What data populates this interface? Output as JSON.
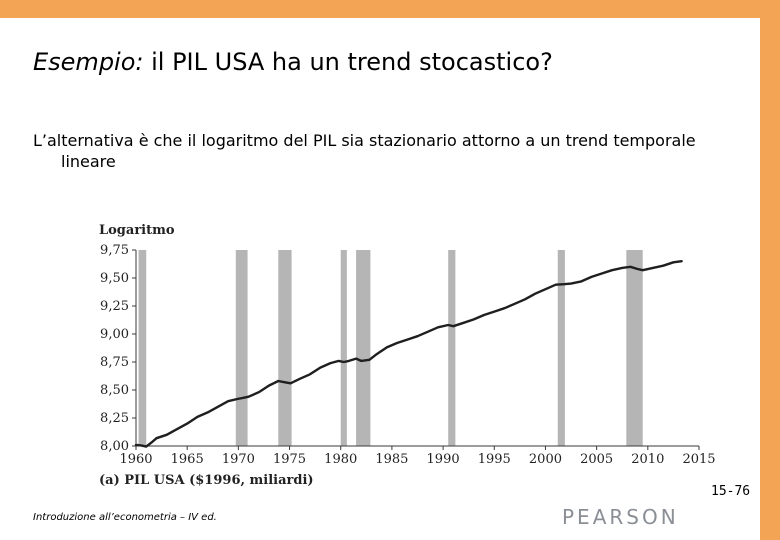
{
  "slide": {
    "title_em": "Esempio:",
    "title_rest": " il PIL USA ha un trend stocastico?",
    "subtitle": "L’alternativa è che il logaritmo del PIL sia stazionario attorno a un trend temporale lineare",
    "footer": "Introduzione all’econometria – IV ed.",
    "logo": "PEARSON",
    "page": "15-76"
  },
  "chart_data": {
    "type": "line",
    "title": "(a) PIL USA ($1996, miliardi)",
    "ylabel": "Logaritmo",
    "xlabel": "",
    "xlim": [
      1960,
      2015
    ],
    "ylim": [
      8.0,
      9.75
    ],
    "x_ticks": [
      1960,
      1965,
      1970,
      1975,
      1980,
      1985,
      1990,
      1995,
      2000,
      2005,
      2010,
      2015
    ],
    "x_tick_labels": [
      "1960",
      "1965",
      "1970",
      "1975",
      "1980",
      "1985",
      "1990",
      "1995",
      "2000",
      "2005",
      "2010",
      "2015"
    ],
    "y_ticks": [
      8.0,
      8.25,
      8.5,
      8.75,
      9.0,
      9.25,
      9.5,
      9.75
    ],
    "y_tick_labels": [
      "8,00",
      "8,25",
      "8,50",
      "8,75",
      "9,00",
      "9,25",
      "9,50",
      "9,75"
    ],
    "recession_bands": [
      [
        1960.25,
        1961.0
      ],
      [
        1969.75,
        1970.9
      ],
      [
        1973.9,
        1975.2
      ],
      [
        1980.0,
        1980.6
      ],
      [
        1981.5,
        1982.9
      ],
      [
        1990.5,
        1991.2
      ],
      [
        2001.2,
        2001.9
      ],
      [
        2007.9,
        2009.5
      ]
    ],
    "series": [
      {
        "values": [
          [
            1960.0,
            8.01
          ],
          [
            1960.5,
            8.005
          ],
          [
            1961.0,
            7.995
          ],
          [
            1961.5,
            8.03
          ],
          [
            1962.0,
            8.07
          ],
          [
            1963.0,
            8.1
          ],
          [
            1964.0,
            8.15
          ],
          [
            1965.0,
            8.2
          ],
          [
            1966.0,
            8.26
          ],
          [
            1967.0,
            8.3
          ],
          [
            1968.0,
            8.35
          ],
          [
            1969.0,
            8.4
          ],
          [
            1969.9,
            8.42
          ],
          [
            1970.5,
            8.43
          ],
          [
            1971.0,
            8.44
          ],
          [
            1972.0,
            8.48
          ],
          [
            1973.0,
            8.54
          ],
          [
            1973.9,
            8.58
          ],
          [
            1974.5,
            8.57
          ],
          [
            1975.1,
            8.56
          ],
          [
            1976.0,
            8.6
          ],
          [
            1977.0,
            8.64
          ],
          [
            1978.0,
            8.7
          ],
          [
            1979.0,
            8.74
          ],
          [
            1979.8,
            8.76
          ],
          [
            1980.3,
            8.75
          ],
          [
            1980.8,
            8.76
          ],
          [
            1981.5,
            8.78
          ],
          [
            1982.0,
            8.76
          ],
          [
            1982.8,
            8.77
          ],
          [
            1983.5,
            8.82
          ],
          [
            1984.5,
            8.88
          ],
          [
            1985.5,
            8.92
          ],
          [
            1986.5,
            8.95
          ],
          [
            1987.5,
            8.98
          ],
          [
            1988.5,
            9.02
          ],
          [
            1989.5,
            9.06
          ],
          [
            1990.5,
            9.08
          ],
          [
            1991.0,
            9.07
          ],
          [
            1992.0,
            9.1
          ],
          [
            1993.0,
            9.13
          ],
          [
            1994.0,
            9.17
          ],
          [
            1995.0,
            9.2
          ],
          [
            1996.0,
            9.23
          ],
          [
            1997.0,
            9.27
          ],
          [
            1998.0,
            9.31
          ],
          [
            1999.0,
            9.36
          ],
          [
            2000.0,
            9.4
          ],
          [
            2001.0,
            9.44
          ],
          [
            2001.8,
            9.445
          ],
          [
            2002.5,
            9.45
          ],
          [
            2003.5,
            9.47
          ],
          [
            2004.5,
            9.51
          ],
          [
            2005.5,
            9.54
          ],
          [
            2006.5,
            9.57
          ],
          [
            2007.5,
            9.59
          ],
          [
            2008.3,
            9.6
          ],
          [
            2009.0,
            9.58
          ],
          [
            2009.5,
            9.57
          ],
          [
            2010.5,
            9.59
          ],
          [
            2011.5,
            9.61
          ],
          [
            2012.5,
            9.64
          ],
          [
            2013.3,
            9.65
          ]
        ]
      }
    ],
    "colors": {
      "line": "#1f1f1f",
      "band": "#b5b5b5",
      "axis": "#3a3a3a"
    }
  }
}
